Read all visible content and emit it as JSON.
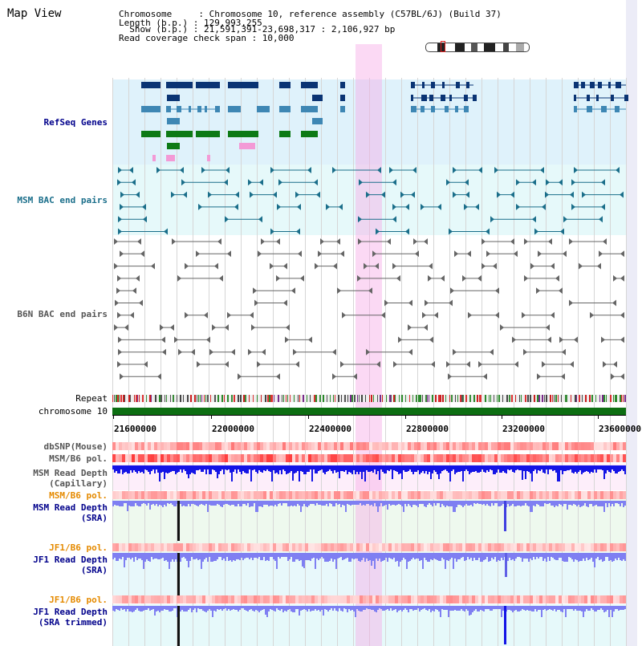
{
  "title": "Map View",
  "info": {
    "chromosome": "Chromosome     : Chromosome 10, reference assembly (C57BL/6J) (Build 37)",
    "length": "Length (b.p.) : 129,993,255",
    "show": "  Show (b.p.) : 21,591,391-23,698,317 : 2,106,927 bp",
    "span": "Read coverage check span : 10,000"
  },
  "tracks": {
    "refseq": "RefSeq Genes",
    "msm_bac": "MSM BAC end pairs",
    "b6n_bac": "B6N BAC end pairs",
    "repeat": "Repeat",
    "chromosome": "chromosome 10",
    "dbsnp": "dbSNP(Mouse)",
    "msm_b6_pol": "MSM/B6 pol.",
    "msm_depth_cap_1": "MSM Read Depth",
    "msm_depth_cap_2": "(Capillary)",
    "msm_b6_pol2": "MSM/B6 pol.",
    "msm_depth_sra_1": "MSM Read Depth",
    "msm_depth_sra_2": "(SRA)",
    "jf1_b6_pol": "JF1/B6 pol.",
    "jf1_depth_sra_1": "JF1 Read Depth",
    "jf1_depth_sra_2": "(SRA)",
    "jf1_b6_pol2": "JF1/B6 pol.",
    "jf1_depth_trim_1": "JF1 Read Depth",
    "jf1_depth_trim_2": "(SRA trimmed)"
  },
  "axis_ticks": [
    "21600000",
    "22000000",
    "22400000",
    "22800000",
    "23200000",
    "23600000"
  ],
  "colors": {
    "refseq_bg": "#dff2fb",
    "msm_bac_bg": "#e6f9fa",
    "gene_dark": "#0a3474",
    "gene_mid": "#3e87b4",
    "gene_green": "#0d7a15",
    "bac_teal": "#1a6e8a",
    "bac_gray": "#666666",
    "chrom_green": "#0d6e12",
    "depth_blue": "#1414e6",
    "depth_light": "#7f7ff2",
    "pol_red": "#e84040",
    "highlight": "#f7b0e8",
    "label_blue": "#00008b",
    "label_orange": "#e58a00"
  }
}
